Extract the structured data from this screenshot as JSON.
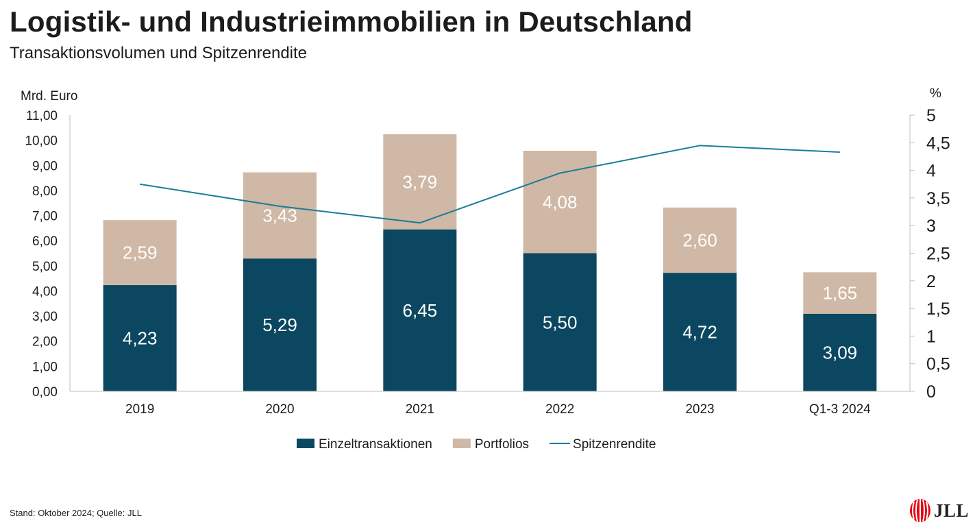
{
  "header": {
    "title": "Logistik- und Industrieimmobilien in Deutschland",
    "subtitle": "Transaktionsvolumen und Spitzenrendite"
  },
  "chart_data": {
    "type": "bar",
    "stacked": true,
    "title": "Logistik- und Industrieimmobilien in Deutschland",
    "subtitle": "Transaktionsvolumen und Spitzenrendite",
    "categories": [
      "2019",
      "2020",
      "2021",
      "2022",
      "2023",
      "Q1-3 2024"
    ],
    "series": [
      {
        "name": "Einzeltransaktionen",
        "type": "bar",
        "axis": "left",
        "color": "#0b4760",
        "values": [
          4.23,
          5.29,
          6.45,
          5.5,
          4.72,
          3.09
        ],
        "labels": [
          "4,23",
          "5,29",
          "6,45",
          "5,50",
          "4,72",
          "3,09"
        ]
      },
      {
        "name": "Portfolios",
        "type": "bar",
        "axis": "left",
        "color": "#cfb8a5",
        "values": [
          2.59,
          3.43,
          3.79,
          4.08,
          2.6,
          1.65
        ],
        "labels": [
          "2,59",
          "3,43",
          "3,79",
          "4,08",
          "2,60",
          "1,65"
        ]
      },
      {
        "name": "Spitzenrendite",
        "type": "line",
        "axis": "right",
        "color": "#1a7d99",
        "values": [
          3.75,
          3.35,
          3.05,
          3.95,
          4.45,
          4.33
        ]
      }
    ],
    "y_left": {
      "label": "Mrd. Euro",
      "min": 0,
      "max": 11,
      "ticks": [
        0,
        1,
        2,
        3,
        4,
        5,
        6,
        7,
        8,
        9,
        10,
        11
      ],
      "tick_labels": [
        "0,00",
        "1,00",
        "2,00",
        "3,00",
        "4,00",
        "5,00",
        "6,00",
        "7,00",
        "8,00",
        "9,00",
        "10,00",
        "11,00"
      ]
    },
    "y_right": {
      "label": "%",
      "min": 0,
      "max": 5,
      "ticks": [
        0,
        0.5,
        1,
        1.5,
        2,
        2.5,
        3,
        3.5,
        4,
        4.5,
        5
      ],
      "tick_labels": [
        "0",
        "0,5",
        "1",
        "1,5",
        "2",
        "2,5",
        "3",
        "3,5",
        "4",
        "4,5",
        "5"
      ]
    },
    "grid": false,
    "legend": {
      "position": "bottom-center",
      "entries": [
        "Einzeltransaktionen",
        "Portfolios",
        "Spitzenrendite"
      ]
    }
  },
  "footer": {
    "source": "Stand: Oktober 2024; Quelle: JLL",
    "logo_text": "JLL"
  },
  "colors": {
    "logo_red": "#e30613"
  }
}
